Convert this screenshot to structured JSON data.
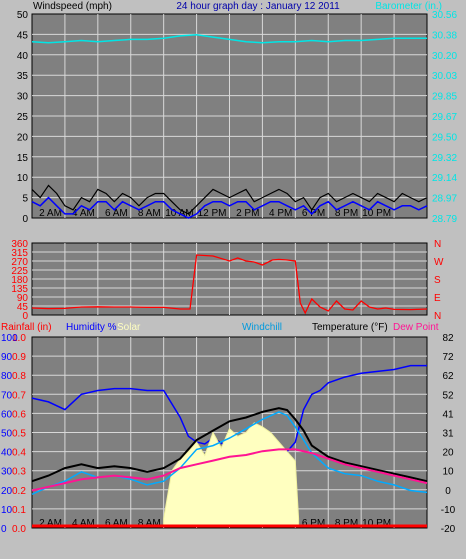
{
  "header": {
    "left_label": "Windspeed (mph)",
    "title": "24 hour graph day : January 12 2011",
    "right_label": "Barometer (in.)"
  },
  "labels": {
    "rainfall": "Rainfall (in)",
    "humidity": "Humidity %",
    "solar": "Solar",
    "windchill": "Windchill",
    "temperature": "Temperature (°F)",
    "dew_point": "Dew Point"
  },
  "colors": {
    "background": "#c0c0c0",
    "plot": "#808080",
    "grid": "#d8d8d8",
    "windspeed": "#000000",
    "windavg": "#0000ff",
    "barometer": "#00e5e5",
    "direction": "#ff0000",
    "humidity": "#0000ff",
    "solar": "#ffffc0",
    "windchill": "#00aaff",
    "temperature": "#000000",
    "dewpoint": "#ff1493",
    "rain": "#ff0000"
  },
  "chart_data": [
    {
      "type": "line",
      "name": "wind-barometer",
      "x_ticks": [
        "2 AM",
        "4 AM",
        "6 AM",
        "8 AM",
        "10 AM",
        "12 PM",
        "2 PM",
        "4 PM",
        "6 PM",
        "8 PM",
        "10 PM"
      ],
      "y_left_ticks": [
        "0",
        "5",
        "10",
        "15",
        "20",
        "25",
        "30",
        "35",
        "40",
        "45",
        "50"
      ],
      "y_left_range": [
        0,
        50
      ],
      "y_right_ticks": [
        "28.79",
        "28.97",
        "29.14",
        "29.32",
        "29.50",
        "29.67",
        "29.85",
        "30.03",
        "30.20",
        "30.38",
        "30.56"
      ],
      "y_right_range": [
        28.79,
        30.56
      ],
      "series": [
        {
          "key": "windspeed",
          "axis": "left",
          "x": [
            0,
            0.5,
            1,
            1.5,
            2,
            2.5,
            3,
            3.5,
            4,
            4.5,
            5,
            5.5,
            6,
            6.5,
            7,
            7.5,
            8,
            8.5,
            9,
            9.5,
            10,
            10.5,
            11,
            11.5,
            12,
            12.5,
            13,
            13.5,
            14,
            14.5,
            15,
            15.5,
            16,
            16.5,
            17,
            17.5,
            18,
            18.5,
            19,
            19.5,
            20,
            20.5,
            21,
            21.5,
            22,
            22.5,
            23,
            23.5,
            24
          ],
          "y": [
            7,
            5,
            8,
            6,
            3,
            2,
            5,
            4,
            7,
            6,
            4,
            6,
            5,
            3,
            5,
            6,
            6,
            4,
            2,
            1,
            3,
            5,
            7,
            6,
            5,
            6,
            7,
            4,
            5,
            6,
            7,
            6,
            4,
            5,
            2,
            5,
            6,
            4,
            5,
            6,
            5,
            4,
            6,
            5,
            4,
            6,
            5,
            4,
            5
          ]
        },
        {
          "key": "windavg",
          "axis": "left",
          "x": [
            0,
            0.5,
            1,
            1.5,
            2,
            2.5,
            3,
            3.5,
            4,
            4.5,
            5,
            5.5,
            6,
            6.5,
            7,
            7.5,
            8,
            8.5,
            9,
            9.5,
            10,
            10.5,
            11,
            11.5,
            12,
            12.5,
            13,
            13.5,
            14,
            14.5,
            15,
            15.5,
            16,
            16.5,
            17,
            17.5,
            18,
            18.5,
            19,
            19.5,
            20,
            20.5,
            21,
            21.5,
            22,
            22.5,
            23,
            23.5,
            24
          ],
          "y": [
            4,
            3,
            5,
            3,
            1,
            1,
            3,
            2,
            4,
            4,
            2,
            4,
            3,
            2,
            3,
            4,
            4,
            2,
            1,
            0,
            1,
            3,
            4,
            4,
            3,
            4,
            4,
            2,
            3,
            4,
            4,
            3,
            2,
            3,
            1,
            3,
            4,
            2,
            3,
            4,
            3,
            2,
            4,
            3,
            2,
            3,
            3,
            2,
            3
          ]
        },
        {
          "key": "barometer",
          "axis": "right",
          "x": [
            0,
            1,
            2,
            3,
            4,
            5,
            6,
            7,
            8,
            9,
            10,
            11,
            12,
            13,
            14,
            15,
            16,
            17,
            18,
            19,
            20,
            21,
            22,
            23,
            24
          ],
          "y": [
            30.32,
            30.31,
            30.32,
            30.33,
            30.32,
            30.33,
            30.34,
            30.34,
            30.35,
            30.37,
            30.38,
            30.36,
            30.34,
            30.32,
            30.31,
            30.32,
            30.32,
            30.33,
            30.32,
            30.33,
            30.33,
            30.34,
            30.35,
            30.35,
            30.35
          ]
        }
      ]
    },
    {
      "type": "line",
      "name": "wind-direction",
      "y_left_ticks": [
        "0",
        "45",
        "90",
        "135",
        "180",
        "225",
        "270",
        "315",
        "360"
      ],
      "y_range": [
        0,
        360
      ],
      "y_right_ticks": [
        "N",
        "W",
        "S",
        "E",
        "N"
      ],
      "series": [
        {
          "key": "direction",
          "axis": "left",
          "x": [
            0,
            1,
            2,
            3,
            4,
            5,
            6,
            7,
            8,
            9,
            9.6,
            10,
            11,
            12,
            12.5,
            13,
            13.5,
            14,
            14.6,
            15,
            15.5,
            16,
            16.3,
            16.6,
            17,
            17.5,
            18,
            18.5,
            19,
            19.5,
            20,
            20.5,
            21,
            21.5,
            22,
            23,
            24
          ],
          "y": [
            35,
            32,
            33,
            40,
            41,
            40,
            40,
            38,
            38,
            30,
            30,
            300,
            295,
            270,
            285,
            270,
            265,
            250,
            275,
            278,
            275,
            270,
            60,
            10,
            80,
            40,
            20,
            70,
            30,
            25,
            70,
            40,
            30,
            35,
            28,
            27,
            30
          ]
        }
      ]
    },
    {
      "type": "line",
      "name": "temperature-humidity",
      "y_rain_ticks": [
        "0.0",
        "0.1",
        "0.2",
        "0.3",
        "0.4",
        "0.5",
        "0.6",
        "0.7",
        "0.8",
        "0.9",
        "1.0"
      ],
      "y_rain_range": [
        0,
        1
      ],
      "y_humidity_ticks": [
        "0",
        "10",
        "20",
        "30",
        "40",
        "50",
        "60",
        "70",
        "80",
        "90",
        "100"
      ],
      "y_humidity_range": [
        0,
        100
      ],
      "y_temp_ticks": [
        "-20",
        "-10",
        "0",
        "10",
        "20",
        "31",
        "41",
        "52",
        "62",
        "72",
        "82"
      ],
      "y_temp_range": [
        -20,
        82
      ],
      "series": [
        {
          "key": "humidity",
          "axis": "humidity",
          "x": [
            0,
            1,
            2,
            3,
            4,
            5,
            6,
            7,
            8,
            9,
            9.5,
            10,
            10.5,
            11,
            12,
            13,
            14,
            15,
            15.5,
            16,
            16.5,
            17,
            17.5,
            18,
            19,
            20,
            21,
            22,
            23,
            24
          ],
          "y": [
            68,
            66,
            62,
            70,
            72,
            73,
            73,
            72,
            72,
            58,
            48,
            45,
            44,
            47,
            42,
            40,
            42,
            40,
            40,
            45,
            62,
            70,
            72,
            76,
            79,
            81,
            82,
            83,
            85,
            85
          ]
        },
        {
          "key": "solar",
          "axis": "humidity",
          "x": [
            8,
            8.5,
            9,
            9.5,
            10,
            10.5,
            11,
            11.5,
            12,
            12.5,
            13,
            13.5,
            14,
            14.5,
            15,
            15.5,
            16,
            16.2
          ],
          "y": [
            5,
            30,
            36,
            40,
            45,
            38,
            50,
            42,
            52,
            48,
            50,
            55,
            53,
            50,
            45,
            40,
            35,
            5
          ]
        },
        {
          "key": "windchill",
          "axis": "temp",
          "x": [
            0,
            1,
            2,
            3,
            4,
            5,
            6,
            7,
            8,
            9,
            10,
            11,
            12,
            13,
            14,
            15,
            15.5,
            16,
            16.5,
            17,
            18,
            19,
            20,
            21,
            22,
            23,
            24
          ],
          "y": [
            -2,
            2,
            5,
            10,
            7,
            8,
            6,
            3,
            5,
            12,
            22,
            24,
            28,
            33,
            38,
            42,
            40,
            34,
            27,
            20,
            12,
            9,
            8,
            5,
            3,
            0,
            -1
          ]
        },
        {
          "key": "temperature",
          "axis": "temp",
          "x": [
            0,
            1,
            2,
            3,
            4,
            5,
            6,
            7,
            8,
            9,
            10,
            11,
            12,
            13,
            14,
            15,
            15.5,
            16,
            16.5,
            17,
            18,
            19,
            20,
            21,
            22,
            23,
            24
          ],
          "y": [
            5,
            8,
            12,
            14,
            12,
            13,
            12,
            10,
            12,
            17,
            27,
            32,
            37,
            39,
            42,
            44,
            43,
            38,
            32,
            24,
            18,
            15,
            13,
            11,
            9,
            7,
            5
          ]
        },
        {
          "key": "dewpoint",
          "axis": "temp",
          "x": [
            0,
            1,
            2,
            3,
            4,
            5,
            6,
            7,
            8,
            9,
            10,
            11,
            12,
            13,
            14,
            15,
            16,
            17,
            18,
            19,
            20,
            21,
            22,
            23,
            24
          ],
          "y": [
            0,
            2,
            4,
            6,
            7,
            8,
            7,
            6,
            8,
            12,
            14,
            16,
            18,
            19,
            21,
            22,
            22,
            20,
            17,
            14,
            12,
            10,
            8,
            6,
            4
          ]
        },
        {
          "key": "rain",
          "axis": "rain",
          "x": [
            0,
            24
          ],
          "y": [
            0,
            0
          ]
        }
      ]
    }
  ]
}
